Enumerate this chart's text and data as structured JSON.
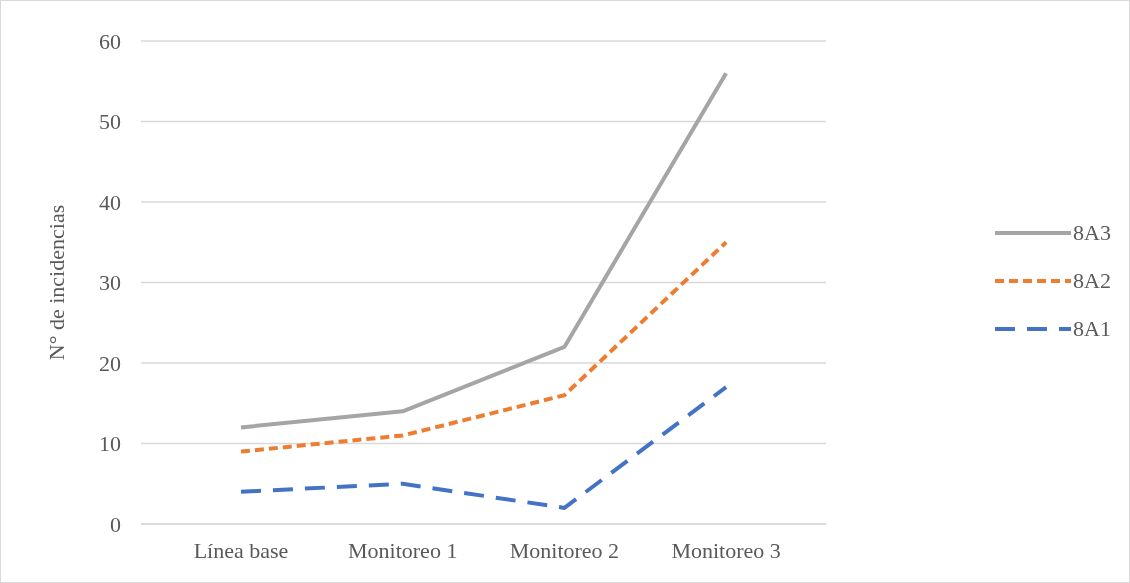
{
  "chart_data": {
    "type": "line",
    "ylabel": "N° de incidencias",
    "categories": [
      "Línea base",
      "Monitoreo 1",
      "Monitoreo 2",
      "Monitoreo 3"
    ],
    "series": [
      {
        "name": "8A3",
        "color": "#a5a5a5",
        "line_style": "solid",
        "values": [
          12,
          14,
          22,
          56
        ]
      },
      {
        "name": "8A2",
        "color": "#ed7d31",
        "line_style": "dotted",
        "values": [
          9,
          11,
          16,
          35
        ]
      },
      {
        "name": "8A1",
        "color": "#4472c4",
        "line_style": "dashed",
        "values": [
          4,
          5,
          2,
          17
        ]
      }
    ],
    "ylim": [
      0,
      60
    ],
    "yticks": [
      0,
      10,
      20,
      30,
      40,
      50,
      60
    ],
    "grid": "y",
    "legend": "right",
    "marker": "none"
  }
}
